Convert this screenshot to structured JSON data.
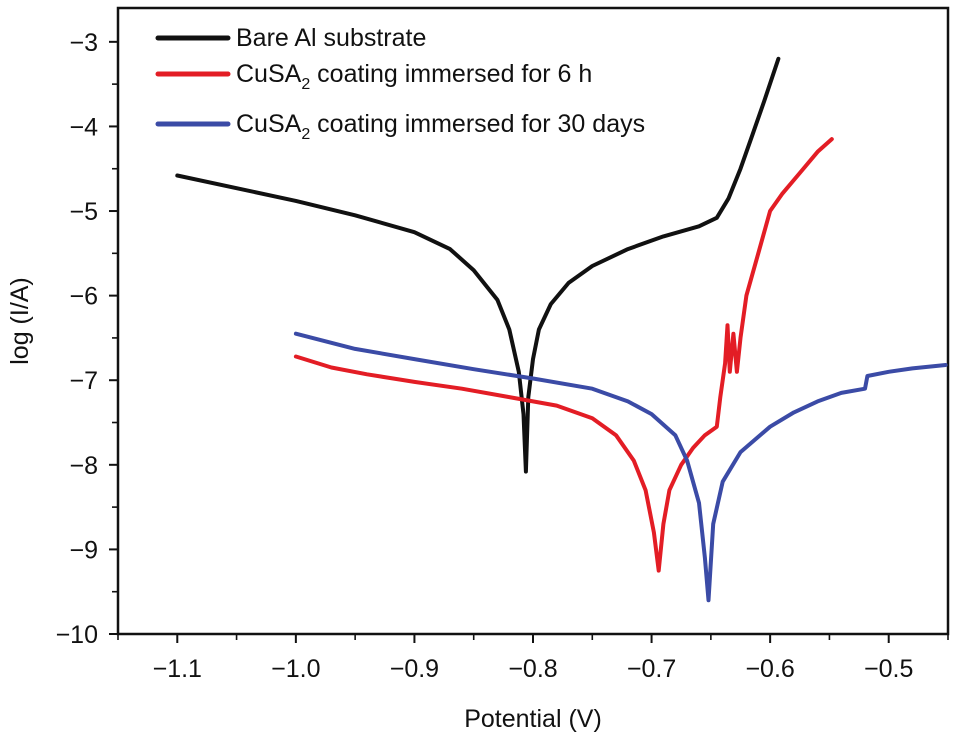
{
  "chart_data": {
    "type": "line",
    "title": "",
    "xlabel": "Potential (V)",
    "ylabel": "log (I/A)",
    "xlim": [
      -1.15,
      -0.45
    ],
    "ylim": [
      -10,
      -2.6
    ],
    "xticks": [
      -1.1,
      -1.0,
      -0.9,
      -0.8,
      -0.7,
      -0.6,
      -0.5
    ],
    "xtick_labels": [
      "−1.1",
      "−1.0",
      "−0.9",
      "−0.8",
      "−0.7",
      "−0.6",
      "−0.5"
    ],
    "yticks": [
      -3,
      -4,
      -5,
      -6,
      -7,
      -8,
      -9,
      -10
    ],
    "ytick_labels": [
      "−3",
      "−4",
      "−5",
      "−6",
      "−7",
      "−8",
      "−9",
      "−10"
    ],
    "grid": false,
    "legend_position": "top-left",
    "series": [
      {
        "name": "Bare Al substrate",
        "legend": {
          "main": "Bare Al substrate",
          "sub": "",
          "rest": ""
        },
        "color": "#111111",
        "points": [
          [
            -1.1,
            -4.58
          ],
          [
            -1.05,
            -4.73
          ],
          [
            -1.0,
            -4.88
          ],
          [
            -0.95,
            -5.05
          ],
          [
            -0.9,
            -5.25
          ],
          [
            -0.87,
            -5.45
          ],
          [
            -0.85,
            -5.7
          ],
          [
            -0.83,
            -6.05
          ],
          [
            -0.82,
            -6.4
          ],
          [
            -0.812,
            -6.9
          ],
          [
            -0.808,
            -7.4
          ],
          [
            -0.806,
            -8.08
          ],
          [
            -0.804,
            -7.2
          ],
          [
            -0.8,
            -6.75
          ],
          [
            -0.795,
            -6.4
          ],
          [
            -0.785,
            -6.1
          ],
          [
            -0.77,
            -5.85
          ],
          [
            -0.75,
            -5.65
          ],
          [
            -0.72,
            -5.45
          ],
          [
            -0.69,
            -5.3
          ],
          [
            -0.66,
            -5.18
          ],
          [
            -0.645,
            -5.08
          ],
          [
            -0.635,
            -4.85
          ],
          [
            -0.625,
            -4.5
          ],
          [
            -0.615,
            -4.1
          ],
          [
            -0.605,
            -3.7
          ],
          [
            -0.593,
            -3.2
          ]
        ]
      },
      {
        "name": "CuSA2 coating immersed for 6 h",
        "legend": {
          "main": "CuSA",
          "sub": "2",
          "rest": " coating immersed for 6 h"
        },
        "color": "#e31d25",
        "points": [
          [
            -1.0,
            -6.72
          ],
          [
            -0.97,
            -6.85
          ],
          [
            -0.94,
            -6.93
          ],
          [
            -0.9,
            -7.02
          ],
          [
            -0.86,
            -7.1
          ],
          [
            -0.82,
            -7.2
          ],
          [
            -0.78,
            -7.3
          ],
          [
            -0.75,
            -7.45
          ],
          [
            -0.73,
            -7.65
          ],
          [
            -0.715,
            -7.95
          ],
          [
            -0.705,
            -8.3
          ],
          [
            -0.698,
            -8.8
          ],
          [
            -0.694,
            -9.25
          ],
          [
            -0.69,
            -8.7
          ],
          [
            -0.685,
            -8.3
          ],
          [
            -0.675,
            -8.0
          ],
          [
            -0.665,
            -7.8
          ],
          [
            -0.655,
            -7.65
          ],
          [
            -0.645,
            -7.55
          ],
          [
            -0.642,
            -7.2
          ],
          [
            -0.638,
            -6.8
          ],
          [
            -0.636,
            -6.35
          ],
          [
            -0.634,
            -6.9
          ],
          [
            -0.631,
            -6.45
          ],
          [
            -0.628,
            -6.9
          ],
          [
            -0.625,
            -6.5
          ],
          [
            -0.62,
            -6.0
          ],
          [
            -0.61,
            -5.5
          ],
          [
            -0.6,
            -5.0
          ],
          [
            -0.59,
            -4.8
          ],
          [
            -0.575,
            -4.55
          ],
          [
            -0.56,
            -4.3
          ],
          [
            -0.548,
            -4.15
          ]
        ]
      },
      {
        "name": "CuSA2 coating immersed for 30 days",
        "legend": {
          "main": "CuSA",
          "sub": "2",
          "rest": " coating immersed for 30 days"
        },
        "color": "#3b4ba6",
        "points": [
          [
            -1.0,
            -6.45
          ],
          [
            -0.95,
            -6.63
          ],
          [
            -0.9,
            -6.75
          ],
          [
            -0.85,
            -6.87
          ],
          [
            -0.8,
            -6.98
          ],
          [
            -0.75,
            -7.1
          ],
          [
            -0.72,
            -7.25
          ],
          [
            -0.7,
            -7.4
          ],
          [
            -0.68,
            -7.65
          ],
          [
            -0.67,
            -7.95
          ],
          [
            -0.66,
            -8.45
          ],
          [
            -0.655,
            -9.1
          ],
          [
            -0.652,
            -9.6
          ],
          [
            -0.648,
            -8.7
          ],
          [
            -0.64,
            -8.2
          ],
          [
            -0.625,
            -7.85
          ],
          [
            -0.6,
            -7.55
          ],
          [
            -0.58,
            -7.38
          ],
          [
            -0.56,
            -7.25
          ],
          [
            -0.54,
            -7.15
          ],
          [
            -0.52,
            -7.1
          ],
          [
            -0.518,
            -6.95
          ],
          [
            -0.5,
            -6.9
          ],
          [
            -0.48,
            -6.86
          ],
          [
            -0.452,
            -6.82
          ]
        ]
      }
    ]
  }
}
